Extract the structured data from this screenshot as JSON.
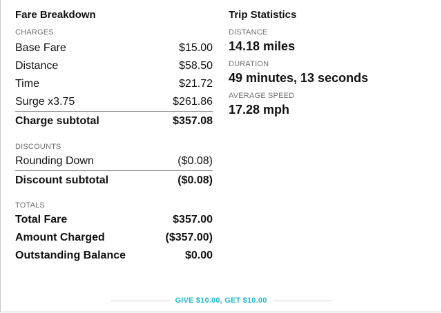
{
  "fare": {
    "title": "Fare Breakdown",
    "charges_label": "CHARGES",
    "charges": [
      {
        "label": "Base Fare",
        "amount": "$15.00"
      },
      {
        "label": "Distance",
        "amount": "$58.50"
      },
      {
        "label": "Time",
        "amount": "$21.72"
      },
      {
        "label": "Surge x3.75",
        "amount": "$261.86"
      }
    ],
    "charge_subtotal": {
      "label": "Charge subtotal",
      "amount": "$357.08"
    },
    "discounts_label": "DISCOUNTS",
    "discounts": [
      {
        "label": "Rounding Down",
        "amount": "($0.08)"
      }
    ],
    "discount_subtotal": {
      "label": "Discount subtotal",
      "amount": "($0.08)"
    },
    "totals_label": "TOTALS",
    "totals": [
      {
        "label": "Total Fare",
        "amount": "$357.00"
      },
      {
        "label": "Amount Charged",
        "amount": "($357.00)"
      },
      {
        "label": "Outstanding Balance",
        "amount": "$0.00"
      }
    ]
  },
  "trip": {
    "title": "Trip Statistics",
    "stats": [
      {
        "label": "DISTANCE",
        "value": "14.18 miles"
      },
      {
        "label": "DURATION",
        "value": "49 minutes, 13 seconds"
      },
      {
        "label": "AVERAGE SPEED",
        "value": "17.28 mph"
      }
    ]
  },
  "footer": {
    "referral_link": "GIVE $10.00, GET $10.00",
    "accent_color": "#21b8cf"
  }
}
